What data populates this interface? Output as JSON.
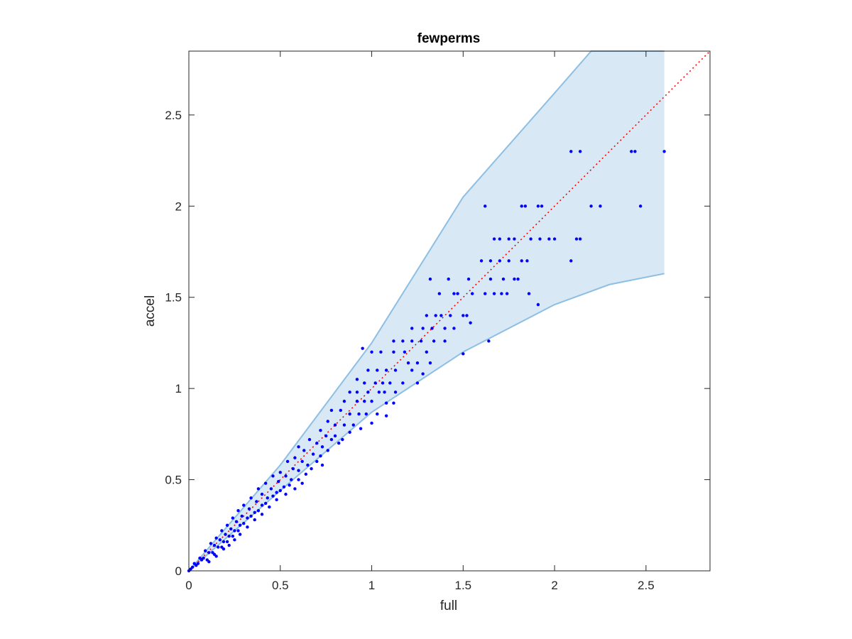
{
  "chart_data": {
    "type": "scatter",
    "title": "fewperms",
    "xlabel": "full",
    "ylabel": "accel",
    "xlim": [
      0,
      2.85
    ],
    "ylim": [
      0,
      2.85
    ],
    "xticks": [
      0,
      0.5,
      1,
      1.5,
      2,
      2.5
    ],
    "yticks": [
      0,
      0.5,
      1,
      1.5,
      2,
      2.5
    ],
    "xtick_labels": [
      "0",
      "0.5",
      "1",
      "1.5",
      "2",
      "2.5"
    ],
    "ytick_labels": [
      "0",
      "0.5",
      "1",
      "1.5",
      "2",
      "2.5"
    ],
    "grid": false,
    "legend": "none",
    "colors": {
      "points": "#0000ff",
      "band_fill": "#d8e8f4",
      "band_edge": "#8dbfe4",
      "reference_line": "#ff0000",
      "axes": "#262626"
    },
    "reference_line": {
      "style": "dotted",
      "x": [
        0,
        2.85
      ],
      "y": [
        0,
        2.85
      ]
    },
    "band": {
      "upper": [
        [
          0,
          0
        ],
        [
          0.5,
          0.58
        ],
        [
          1,
          1.25
        ],
        [
          1.5,
          2.05
        ],
        [
          2,
          2.62
        ],
        [
          2.2,
          2.85
        ],
        [
          2.6,
          2.85
        ]
      ],
      "lower": [
        [
          0,
          0
        ],
        [
          0.5,
          0.44
        ],
        [
          1,
          0.87
        ],
        [
          1.5,
          1.2
        ],
        [
          2,
          1.46
        ],
        [
          2.3,
          1.57
        ],
        [
          2.6,
          1.63
        ]
      ]
    },
    "series": [
      {
        "points": [
          [
            2.09,
            2.3
          ],
          [
            2.14,
            2.3
          ],
          [
            2.42,
            2.3
          ],
          [
            2.44,
            2.3
          ],
          [
            2.6,
            2.3
          ],
          [
            1.62,
            2.0
          ],
          [
            1.82,
            2.0
          ],
          [
            1.84,
            2.0
          ],
          [
            1.91,
            2.0
          ],
          [
            1.93,
            2.0
          ],
          [
            2.2,
            2.0
          ],
          [
            2.25,
            2.0
          ],
          [
            2.47,
            2.0
          ],
          [
            1.67,
            1.82
          ],
          [
            1.7,
            1.82
          ],
          [
            1.75,
            1.82
          ],
          [
            1.78,
            1.82
          ],
          [
            1.87,
            1.82
          ],
          [
            1.92,
            1.82
          ],
          [
            1.97,
            1.82
          ],
          [
            2.0,
            1.82
          ],
          [
            2.12,
            1.82
          ],
          [
            2.14,
            1.82
          ],
          [
            1.6,
            1.7
          ],
          [
            1.65,
            1.7
          ],
          [
            1.7,
            1.7
          ],
          [
            1.75,
            1.7
          ],
          [
            1.82,
            1.7
          ],
          [
            1.85,
            1.7
          ],
          [
            2.09,
            1.7
          ],
          [
            1.32,
            1.6
          ],
          [
            1.42,
            1.6
          ],
          [
            1.53,
            1.6
          ],
          [
            1.65,
            1.6
          ],
          [
            1.72,
            1.6
          ],
          [
            1.78,
            1.6
          ],
          [
            1.8,
            1.6
          ],
          [
            1.37,
            1.52
          ],
          [
            1.45,
            1.52
          ],
          [
            1.47,
            1.52
          ],
          [
            1.55,
            1.52
          ],
          [
            1.62,
            1.52
          ],
          [
            1.67,
            1.52
          ],
          [
            1.71,
            1.52
          ],
          [
            1.74,
            1.52
          ],
          [
            1.86,
            1.52
          ],
          [
            1.3,
            1.4
          ],
          [
            1.35,
            1.4
          ],
          [
            1.38,
            1.4
          ],
          [
            1.43,
            1.4
          ],
          [
            1.5,
            1.4
          ],
          [
            1.52,
            1.4
          ],
          [
            1.91,
            1.46
          ],
          [
            1.22,
            1.33
          ],
          [
            1.28,
            1.33
          ],
          [
            1.33,
            1.33
          ],
          [
            1.4,
            1.33
          ],
          [
            1.45,
            1.33
          ],
          [
            1.54,
            1.36
          ],
          [
            1.64,
            1.26
          ],
          [
            1.5,
            1.19
          ],
          [
            1.12,
            1.26
          ],
          [
            1.17,
            1.26
          ],
          [
            1.22,
            1.26
          ],
          [
            1.27,
            1.26
          ],
          [
            1.34,
            1.26
          ],
          [
            1.4,
            1.26
          ],
          [
            1.3,
            1.2
          ],
          [
            0.95,
            1.22
          ],
          [
            1.0,
            1.2
          ],
          [
            1.05,
            1.2
          ],
          [
            1.12,
            1.2
          ],
          [
            1.18,
            1.2
          ],
          [
            1.2,
            1.14
          ],
          [
            1.25,
            1.14
          ],
          [
            1.32,
            1.14
          ],
          [
            0.98,
            1.1
          ],
          [
            1.03,
            1.1
          ],
          [
            1.08,
            1.1
          ],
          [
            1.13,
            1.1
          ],
          [
            1.22,
            1.1
          ],
          [
            1.28,
            1.08
          ],
          [
            0.92,
            1.05
          ],
          [
            0.96,
            1.03
          ],
          [
            1.02,
            1.03
          ],
          [
            1.06,
            1.03
          ],
          [
            1.1,
            1.03
          ],
          [
            1.17,
            1.03
          ],
          [
            1.25,
            1.03
          ],
          [
            0.88,
            0.98
          ],
          [
            0.92,
            0.98
          ],
          [
            0.98,
            0.98
          ],
          [
            1.04,
            0.98
          ],
          [
            1.07,
            0.98
          ],
          [
            1.13,
            0.98
          ],
          [
            0.85,
            0.93
          ],
          [
            0.92,
            0.93
          ],
          [
            0.96,
            0.93
          ],
          [
            1.0,
            0.93
          ],
          [
            1.08,
            0.92
          ],
          [
            1.12,
            0.92
          ],
          [
            0.78,
            0.88
          ],
          [
            0.83,
            0.88
          ],
          [
            0.88,
            0.86
          ],
          [
            0.93,
            0.86
          ],
          [
            0.97,
            0.86
          ],
          [
            1.03,
            0.86
          ],
          [
            1.08,
            0.85
          ],
          [
            0.76,
            0.82
          ],
          [
            0.8,
            0.8
          ],
          [
            0.85,
            0.8
          ],
          [
            0.9,
            0.8
          ],
          [
            0.94,
            0.78
          ],
          [
            1.0,
            0.81
          ],
          [
            0.72,
            0.77
          ],
          [
            0.75,
            0.74
          ],
          [
            0.8,
            0.74
          ],
          [
            0.84,
            0.72
          ],
          [
            0.88,
            0.76
          ],
          [
            0.66,
            0.72
          ],
          [
            0.7,
            0.7
          ],
          [
            0.73,
            0.68
          ],
          [
            0.78,
            0.72
          ],
          [
            0.82,
            0.7
          ],
          [
            0.6,
            0.68
          ],
          [
            0.63,
            0.66
          ],
          [
            0.68,
            0.64
          ],
          [
            0.72,
            0.63
          ],
          [
            0.76,
            0.66
          ],
          [
            0.58,
            0.62
          ],
          [
            0.62,
            0.6
          ],
          [
            0.65,
            0.58
          ],
          [
            0.7,
            0.6
          ],
          [
            0.73,
            0.58
          ],
          [
            0.54,
            0.6
          ],
          [
            0.57,
            0.56
          ],
          [
            0.6,
            0.55
          ],
          [
            0.64,
            0.53
          ],
          [
            0.67,
            0.56
          ],
          [
            0.5,
            0.54
          ],
          [
            0.53,
            0.52
          ],
          [
            0.56,
            0.5
          ],
          [
            0.6,
            0.5
          ],
          [
            0.62,
            0.48
          ],
          [
            0.46,
            0.52
          ],
          [
            0.49,
            0.49
          ],
          [
            0.52,
            0.46
          ],
          [
            0.55,
            0.47
          ],
          [
            0.58,
            0.45
          ],
          [
            0.42,
            0.48
          ],
          [
            0.45,
            0.45
          ],
          [
            0.48,
            0.43
          ],
          [
            0.5,
            0.44
          ],
          [
            0.53,
            0.42
          ],
          [
            0.38,
            0.45
          ],
          [
            0.4,
            0.42
          ],
          [
            0.43,
            0.4
          ],
          [
            0.46,
            0.41
          ],
          [
            0.48,
            0.39
          ],
          [
            0.34,
            0.4
          ],
          [
            0.37,
            0.38
          ],
          [
            0.4,
            0.36
          ],
          [
            0.42,
            0.37
          ],
          [
            0.44,
            0.35
          ],
          [
            0.3,
            0.36
          ],
          [
            0.33,
            0.34
          ],
          [
            0.36,
            0.32
          ],
          [
            0.38,
            0.33
          ],
          [
            0.4,
            0.31
          ],
          [
            0.27,
            0.33
          ],
          [
            0.29,
            0.3
          ],
          [
            0.32,
            0.29
          ],
          [
            0.34,
            0.3
          ],
          [
            0.36,
            0.28
          ],
          [
            0.24,
            0.29
          ],
          [
            0.26,
            0.27
          ],
          [
            0.28,
            0.25
          ],
          [
            0.3,
            0.26
          ],
          [
            0.32,
            0.24
          ],
          [
            0.21,
            0.25
          ],
          [
            0.23,
            0.23
          ],
          [
            0.25,
            0.22
          ],
          [
            0.27,
            0.22
          ],
          [
            0.28,
            0.2
          ],
          [
            0.18,
            0.22
          ],
          [
            0.2,
            0.2
          ],
          [
            0.22,
            0.19
          ],
          [
            0.24,
            0.19
          ],
          [
            0.25,
            0.17
          ],
          [
            0.15,
            0.18
          ],
          [
            0.17,
            0.17
          ],
          [
            0.19,
            0.16
          ],
          [
            0.21,
            0.16
          ],
          [
            0.22,
            0.14
          ],
          [
            0.12,
            0.15
          ],
          [
            0.14,
            0.14
          ],
          [
            0.16,
            0.13
          ],
          [
            0.18,
            0.13
          ],
          [
            0.19,
            0.12
          ],
          [
            0.09,
            0.11
          ],
          [
            0.11,
            0.1
          ],
          [
            0.13,
            0.1
          ],
          [
            0.14,
            0.09
          ],
          [
            0.15,
            0.08
          ],
          [
            0.06,
            0.07
          ],
          [
            0.07,
            0.06
          ],
          [
            0.08,
            0.07
          ],
          [
            0.1,
            0.06
          ],
          [
            0.11,
            0.05
          ],
          [
            0.03,
            0.04
          ],
          [
            0.04,
            0.03
          ],
          [
            0.05,
            0.04
          ],
          [
            0.02,
            0.02
          ],
          [
            0.01,
            0.01
          ],
          [
            0.0,
            0.0
          ]
        ]
      }
    ]
  }
}
